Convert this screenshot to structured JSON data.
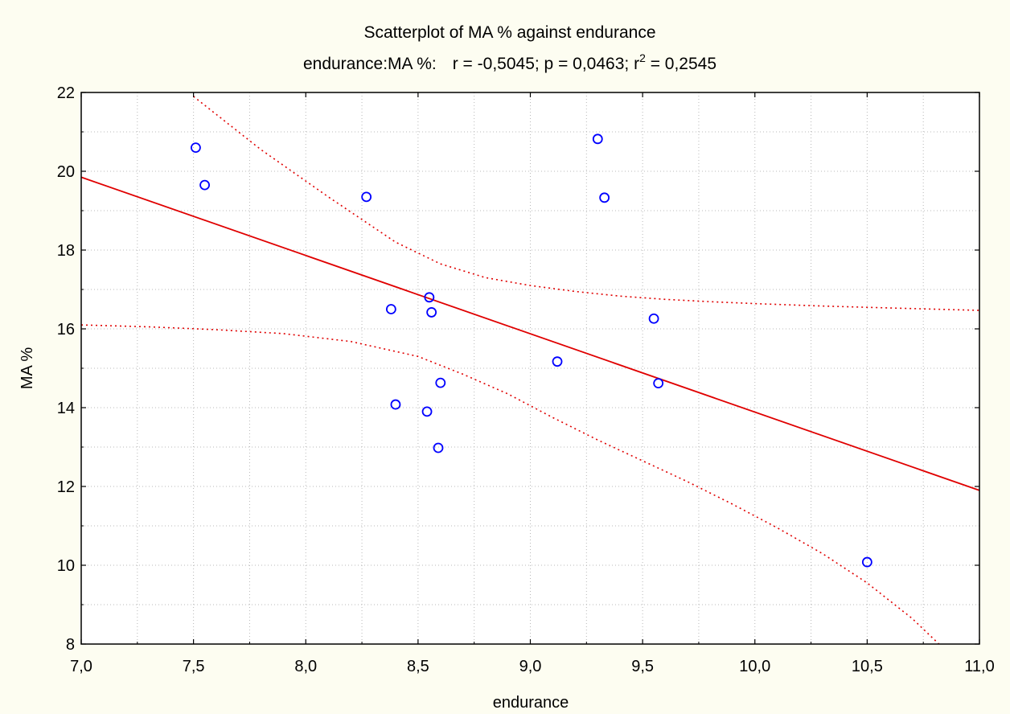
{
  "chart_data": {
    "type": "scatter",
    "title": "Scatterplot of MA % against endurance",
    "subtitle": {
      "lead": "endurance:MA %:",
      "r": "r = -0,5045; p = 0,0463; r",
      "sup": "2",
      "tail": " = 0,2545"
    },
    "xlabel": "endurance",
    "ylabel": "MA %",
    "xlim": [
      7.0,
      11.0
    ],
    "ylim": [
      8,
      22
    ],
    "x_ticks": [
      7.0,
      7.5,
      8.0,
      8.5,
      9.0,
      9.5,
      10.0,
      10.5,
      11.0
    ],
    "x_tick_labels": [
      "7,0",
      "7,5",
      "8,0",
      "8,5",
      "9,0",
      "9,5",
      "10,0",
      "10,5",
      "11,0"
    ],
    "y_ticks": [
      8,
      10,
      12,
      14,
      16,
      18,
      20,
      22
    ],
    "y_tick_labels": [
      "8",
      "10",
      "12",
      "14",
      "16",
      "18",
      "20",
      "22"
    ],
    "grid": true,
    "points": [
      {
        "x": 7.51,
        "y": 20.6
      },
      {
        "x": 7.55,
        "y": 19.65
      },
      {
        "x": 8.27,
        "y": 19.35
      },
      {
        "x": 8.38,
        "y": 16.5
      },
      {
        "x": 8.4,
        "y": 14.08
      },
      {
        "x": 8.54,
        "y": 13.9
      },
      {
        "x": 8.55,
        "y": 16.8
      },
      {
        "x": 8.56,
        "y": 16.42
      },
      {
        "x": 8.59,
        "y": 12.98
      },
      {
        "x": 8.6,
        "y": 14.63
      },
      {
        "x": 9.12,
        "y": 15.17
      },
      {
        "x": 9.3,
        "y": 20.82
      },
      {
        "x": 9.33,
        "y": 19.33
      },
      {
        "x": 9.55,
        "y": 16.26
      },
      {
        "x": 9.57,
        "y": 14.62
      },
      {
        "x": 10.5,
        "y": 10.08
      }
    ],
    "regression_line": {
      "x": [
        7.0,
        11.0
      ],
      "y": [
        19.85,
        11.9
      ]
    },
    "confidence_upper": {
      "x": [
        7.5,
        7.8,
        8.1,
        8.4,
        8.6,
        8.8,
        9.0,
        9.2,
        9.4,
        9.6,
        9.8,
        10.0,
        10.3,
        10.6,
        11.0
      ],
      "y": [
        21.9,
        20.55,
        19.35,
        18.2,
        17.65,
        17.3,
        17.1,
        16.95,
        16.83,
        16.75,
        16.69,
        16.64,
        16.58,
        16.53,
        16.47
      ]
    },
    "confidence_lower": {
      "x": [
        7.0,
        7.3,
        7.6,
        7.9,
        8.2,
        8.5,
        8.7,
        8.9,
        9.1,
        9.3,
        9.5,
        9.7,
        9.9,
        10.1,
        10.3,
        10.5,
        10.7,
        10.82
      ],
      "y": [
        16.1,
        16.05,
        15.98,
        15.88,
        15.68,
        15.3,
        14.85,
        14.35,
        13.75,
        13.18,
        12.65,
        12.12,
        11.55,
        10.95,
        10.3,
        9.55,
        8.65,
        8.0
      ]
    },
    "colors": {
      "background": "#fdfdf1",
      "plot_area": "#ffffff",
      "points": "#0000ff",
      "regression": "#e00000",
      "confidence": "#e00000",
      "grid": "#b8b8b8",
      "axes": "#000000"
    }
  }
}
